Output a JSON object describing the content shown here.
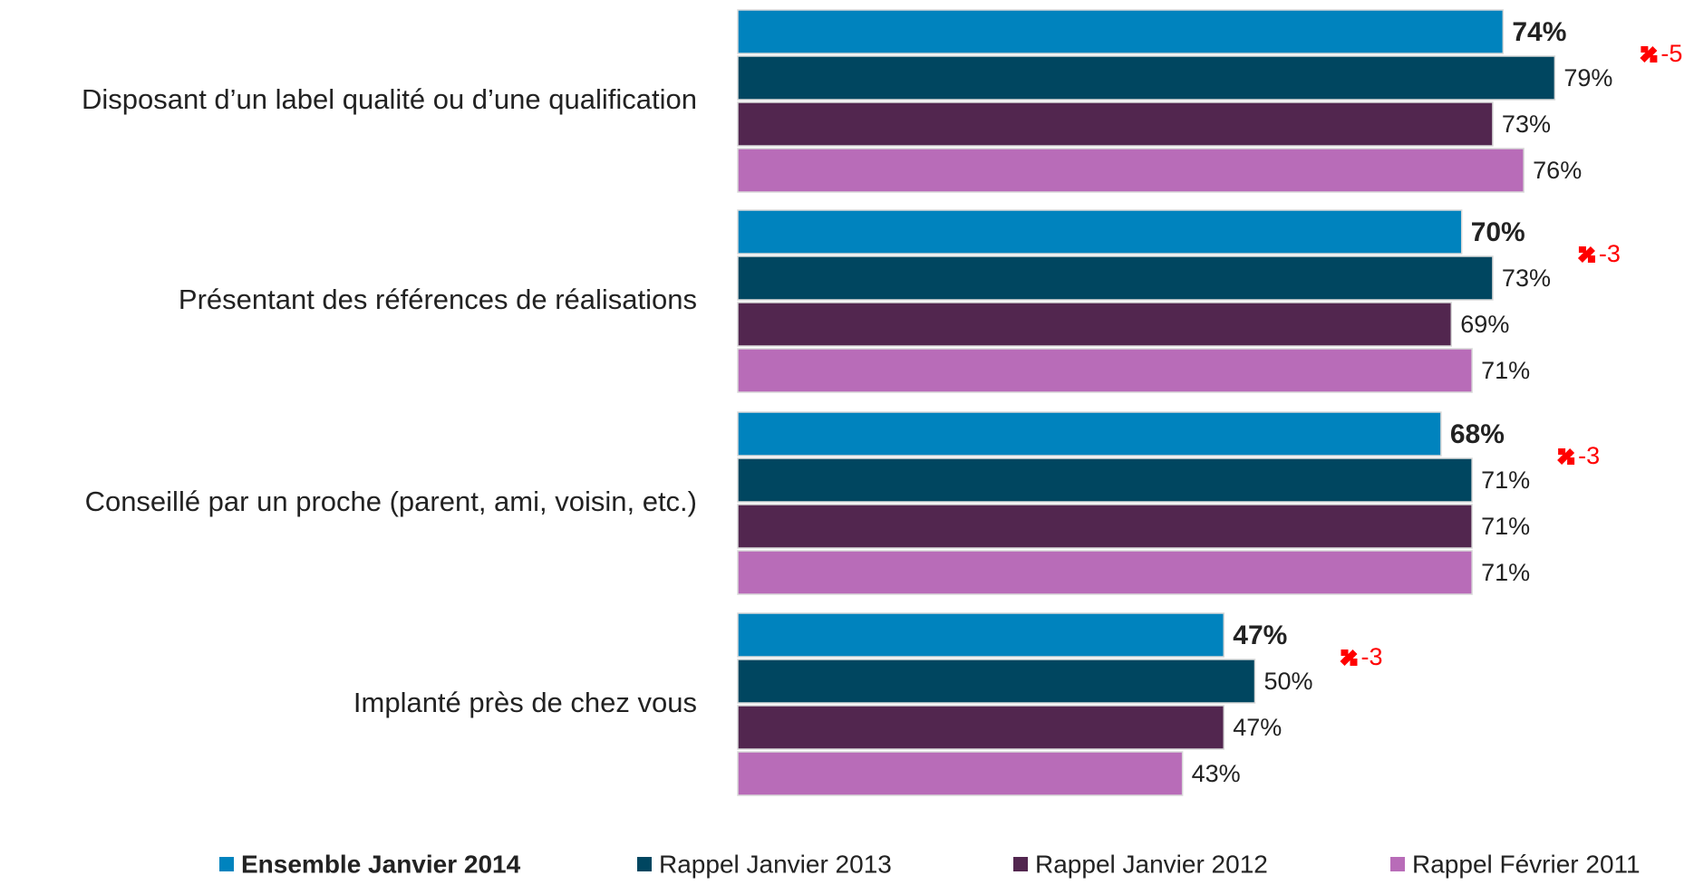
{
  "chart_data": {
    "type": "bar",
    "orientation": "horizontal",
    "categories": [
      "Disposant d’un label qualité ou d’une qualification",
      "Présentant des références de réalisations",
      "Conseillé par un proche (parent, ami, voisin, etc.)",
      "Implanté près de chez vous"
    ],
    "series": [
      {
        "name": "Ensemble Janvier 2014",
        "color": "#0083be",
        "values": [
          74,
          70,
          68,
          47
        ],
        "value_labels": [
          "74%",
          "70%",
          "68%",
          "47%"
        ]
      },
      {
        "name": "Rappel Janvier 2013",
        "color": "#004660",
        "values": [
          79,
          73,
          71,
          50
        ],
        "value_labels": [
          "79%",
          "73%",
          "71%",
          "50%"
        ]
      },
      {
        "name": "Rappel Janvier 2012",
        "color": "#52264f",
        "values": [
          73,
          69,
          71,
          47
        ],
        "value_labels": [
          "73%",
          "69%",
          "71%",
          "47%"
        ]
      },
      {
        "name": "Rappel Février 2011",
        "color": "#b86cb8",
        "values": [
          76,
          71,
          71,
          43
        ],
        "value_labels": [
          "76%",
          "71%",
          "71%",
          "43%"
        ]
      }
    ],
    "changes": [
      -5,
      -3,
      -3,
      -3
    ],
    "change_color": "#ff0000"
  }
}
